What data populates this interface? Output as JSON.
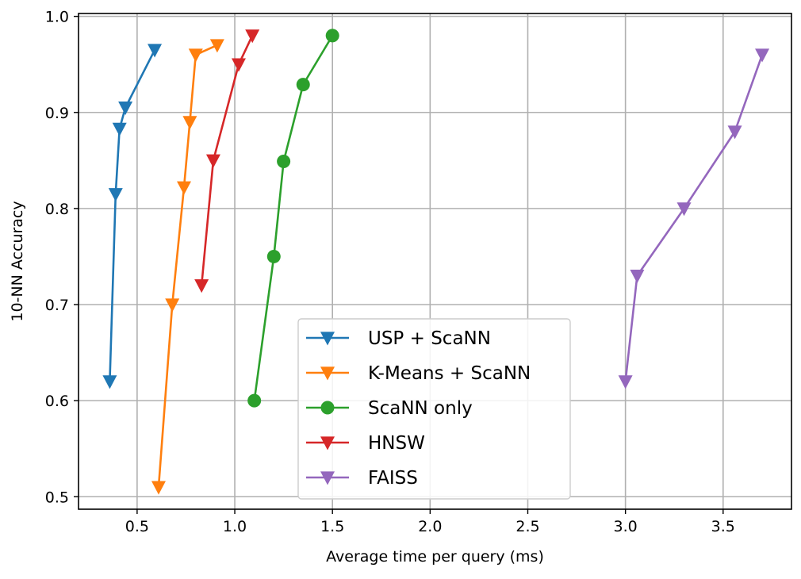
{
  "chart_data": {
    "type": "line",
    "title": "",
    "xlabel": "Average time per query (ms)",
    "ylabel": "10-NN Accuracy",
    "xlim": [
      0.2,
      3.85
    ],
    "ylim": [
      0.487,
      1.003
    ],
    "xticks": [
      0.5,
      1.0,
      1.5,
      2.0,
      2.5,
      3.0,
      3.5
    ],
    "xtick_labels": [
      "0.5",
      "1.0",
      "1.5",
      "2.0",
      "2.5",
      "3.0",
      "3.5"
    ],
    "yticks": [
      0.5,
      0.6,
      0.7,
      0.8,
      0.9,
      1.0
    ],
    "ytick_labels": [
      "0.5",
      "0.6",
      "0.7",
      "0.8",
      "0.9",
      "1.0"
    ],
    "grid": true,
    "legend_position": "lower center",
    "series": [
      {
        "name": "USP + ScaNN",
        "color": "#1f77b4",
        "marker": "triangle-down",
        "x": [
          0.36,
          0.39,
          0.41,
          0.44,
          0.59
        ],
        "y": [
          0.62,
          0.815,
          0.883,
          0.905,
          0.965
        ]
      },
      {
        "name": "K-Means + ScaNN",
        "color": "#ff7f0e",
        "marker": "triangle-down",
        "x": [
          0.61,
          0.68,
          0.74,
          0.77,
          0.8,
          0.91
        ],
        "y": [
          0.51,
          0.7,
          0.822,
          0.89,
          0.96,
          0.97
        ]
      },
      {
        "name": "ScaNN only",
        "color": "#2ca02c",
        "marker": "circle",
        "x": [
          1.1,
          1.2,
          1.25,
          1.35,
          1.5
        ],
        "y": [
          0.6,
          0.75,
          0.849,
          0.929,
          0.98
        ]
      },
      {
        "name": "HNSW",
        "color": "#d62728",
        "marker": "triangle-down",
        "x": [
          0.83,
          0.89,
          1.02,
          1.09
        ],
        "y": [
          0.72,
          0.85,
          0.95,
          0.98
        ]
      },
      {
        "name": "FAISS",
        "color": "#9467bd",
        "marker": "triangle-down",
        "x": [
          3.0,
          3.06,
          3.3,
          3.56,
          3.7
        ],
        "y": [
          0.62,
          0.73,
          0.8,
          0.88,
          0.96
        ]
      }
    ]
  }
}
